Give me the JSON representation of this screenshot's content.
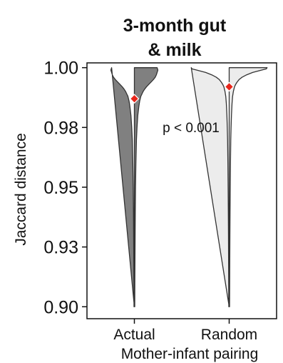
{
  "chart_data": {
    "type": "violin",
    "title_lines": [
      "3-month gut",
      "& milk"
    ],
    "xlabel": "Mother-infant pairing",
    "ylabel": "Jaccard distance",
    "ylim": [
      0.895,
      1.002
    ],
    "yticks": [
      {
        "value": 0.9,
        "label": "0.90"
      },
      {
        "value": 0.925,
        "label": "0.93"
      },
      {
        "value": 0.95,
        "label": "0.95"
      },
      {
        "value": 0.975,
        "label": "0.98"
      },
      {
        "value": 1.0,
        "label": "1.00"
      }
    ],
    "categories": [
      "Actual",
      "Random"
    ],
    "series": [
      {
        "category": "Actual",
        "fill": "#808080",
        "mean": 0.987,
        "min": 0.9,
        "max": 1.0,
        "density_profile": [
          [
            1.0,
            0.6
          ],
          [
            0.999,
            0.62
          ],
          [
            0.998,
            0.6
          ],
          [
            0.997,
            0.58
          ],
          [
            0.996,
            0.55
          ],
          [
            0.995,
            0.5
          ],
          [
            0.994,
            0.44
          ],
          [
            0.993,
            0.38
          ],
          [
            0.992,
            0.32
          ],
          [
            0.991,
            0.27
          ],
          [
            0.99,
            0.23
          ],
          [
            0.989,
            0.2
          ],
          [
            0.988,
            0.17
          ],
          [
            0.986,
            0.14
          ],
          [
            0.984,
            0.12
          ],
          [
            0.98,
            0.09
          ],
          [
            0.975,
            0.07
          ],
          [
            0.97,
            0.055
          ],
          [
            0.96,
            0.04
          ],
          [
            0.95,
            0.03
          ],
          [
            0.94,
            0.024
          ],
          [
            0.93,
            0.02
          ],
          [
            0.92,
            0.016
          ],
          [
            0.91,
            0.012
          ],
          [
            0.9,
            0.01
          ]
        ]
      },
      {
        "category": "Random",
        "fill": "#ececec",
        "mean": 0.992,
        "min": 0.9,
        "max": 1.0,
        "density_profile": [
          [
            1.0,
            1.0
          ],
          [
            0.9995,
            0.98
          ],
          [
            0.999,
            0.86
          ],
          [
            0.998,
            0.62
          ],
          [
            0.997,
            0.46
          ],
          [
            0.996,
            0.34
          ],
          [
            0.995,
            0.26
          ],
          [
            0.994,
            0.21
          ],
          [
            0.993,
            0.17
          ],
          [
            0.992,
            0.14
          ],
          [
            0.99,
            0.11
          ],
          [
            0.988,
            0.09
          ],
          [
            0.985,
            0.075
          ],
          [
            0.98,
            0.06
          ],
          [
            0.975,
            0.05
          ],
          [
            0.97,
            0.042
          ],
          [
            0.96,
            0.034
          ],
          [
            0.95,
            0.028
          ],
          [
            0.94,
            0.023
          ],
          [
            0.93,
            0.019
          ],
          [
            0.92,
            0.016
          ],
          [
            0.91,
            0.013
          ],
          [
            0.9,
            0.01
          ]
        ]
      }
    ],
    "annotation": "p < 0.001"
  }
}
